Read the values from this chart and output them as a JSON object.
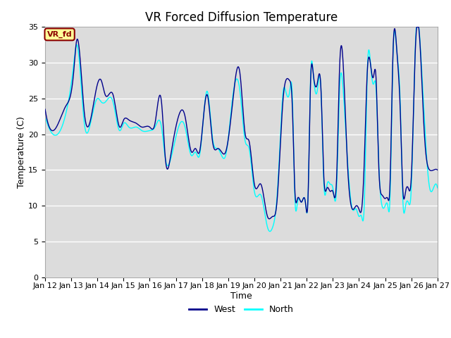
{
  "title": "VR Forced Diffusion Temperature",
  "xlabel": "Time",
  "ylabel": "Temperature (C)",
  "ylim": [
    0,
    35
  ],
  "yticks": [
    0,
    5,
    10,
    15,
    20,
    25,
    30,
    35
  ],
  "x_tick_labels": [
    "Jan 12",
    "Jan 13",
    "Jan 14",
    "Jan 15",
    "Jan 16",
    "Jan 17",
    "Jan 18",
    "Jan 19",
    "Jan 20",
    "Jan 21",
    "Jan 22",
    "Jan 23",
    "Jan 24",
    "Jan 25",
    "Jan 26",
    "Jan 27"
  ],
  "west_color": "#00008B",
  "north_color": "#00FFFF",
  "legend_label_west": "West",
  "legend_label_north": "North",
  "annotation_text": "VR_fd",
  "annotation_bg": "#FFFF99",
  "annotation_border": "#8B0000",
  "plot_bg": "#DCDCDC",
  "title_fontsize": 12,
  "axis_fontsize": 9,
  "tick_fontsize": 8,
  "west_points": [
    [
      0.0,
      23.5
    ],
    [
      0.3,
      20.5
    ],
    [
      0.8,
      24.0
    ],
    [
      1.1,
      29.0
    ],
    [
      1.2,
      33.0
    ],
    [
      1.5,
      23.0
    ],
    [
      1.7,
      21.5
    ],
    [
      2.0,
      27.0
    ],
    [
      2.15,
      27.5
    ],
    [
      2.3,
      25.5
    ],
    [
      2.6,
      25.5
    ],
    [
      2.85,
      21.0
    ],
    [
      3.0,
      22.0
    ],
    [
      3.2,
      22.0
    ],
    [
      3.5,
      21.5
    ],
    [
      3.7,
      21.0
    ],
    [
      4.0,
      21.0
    ],
    [
      4.2,
      21.5
    ],
    [
      4.45,
      24.5
    ],
    [
      4.6,
      16.5
    ],
    [
      4.8,
      17.0
    ],
    [
      5.1,
      22.5
    ],
    [
      5.35,
      22.5
    ],
    [
      5.6,
      17.5
    ],
    [
      5.75,
      18.0
    ],
    [
      5.9,
      17.5
    ],
    [
      6.2,
      25.5
    ],
    [
      6.4,
      19.0
    ],
    [
      6.6,
      18.0
    ],
    [
      6.75,
      17.5
    ],
    [
      6.9,
      17.5
    ],
    [
      7.2,
      25.5
    ],
    [
      7.45,
      28.5
    ],
    [
      7.65,
      20.0
    ],
    [
      7.8,
      19.0
    ],
    [
      8.0,
      13.0
    ],
    [
      8.25,
      13.0
    ],
    [
      8.5,
      8.5
    ],
    [
      8.7,
      8.5
    ],
    [
      8.85,
      10.0
    ],
    [
      9.0,
      19.0
    ],
    [
      9.1,
      25.0
    ],
    [
      9.2,
      27.5
    ],
    [
      9.35,
      27.5
    ],
    [
      9.45,
      24.0
    ],
    [
      9.55,
      12.0
    ],
    [
      9.65,
      11.0
    ],
    [
      9.8,
      10.5
    ],
    [
      9.95,
      10.5
    ],
    [
      10.05,
      11.0
    ],
    [
      10.15,
      27.5
    ],
    [
      10.25,
      28.5
    ],
    [
      10.4,
      27.0
    ],
    [
      10.55,
      26.0
    ],
    [
      10.65,
      14.5
    ],
    [
      10.78,
      12.5
    ],
    [
      10.9,
      12.0
    ],
    [
      11.0,
      12.0
    ],
    [
      11.15,
      14.5
    ],
    [
      11.25,
      28.5
    ],
    [
      11.4,
      29.5
    ],
    [
      11.55,
      16.5
    ],
    [
      11.75,
      9.5
    ],
    [
      11.9,
      10.0
    ],
    [
      12.0,
      9.5
    ],
    [
      12.1,
      9.5
    ],
    [
      12.2,
      16.0
    ],
    [
      12.32,
      29.0
    ],
    [
      12.45,
      29.5
    ],
    [
      12.55,
      28.0
    ],
    [
      12.65,
      28.0
    ],
    [
      12.75,
      16.0
    ],
    [
      12.88,
      11.5
    ],
    [
      13.0,
      11.0
    ],
    [
      13.1,
      11.0
    ],
    [
      13.18,
      12.5
    ],
    [
      13.3,
      31.5
    ],
    [
      13.45,
      31.5
    ],
    [
      13.58,
      23.0
    ],
    [
      13.68,
      12.0
    ],
    [
      13.78,
      12.0
    ],
    [
      13.88,
      12.5
    ],
    [
      14.0,
      14.0
    ],
    [
      14.15,
      31.5
    ],
    [
      14.35,
      31.5
    ],
    [
      14.5,
      20.0
    ],
    [
      14.7,
      15.0
    ],
    [
      14.85,
      15.0
    ],
    [
      15.0,
      15.0
    ]
  ],
  "north_points": [
    [
      0.0,
      22.5
    ],
    [
      0.3,
      20.0
    ],
    [
      0.8,
      23.0
    ],
    [
      1.1,
      30.0
    ],
    [
      1.2,
      32.5
    ],
    [
      1.5,
      21.5
    ],
    [
      1.7,
      21.0
    ],
    [
      2.0,
      25.0
    ],
    [
      2.15,
      24.5
    ],
    [
      2.3,
      24.5
    ],
    [
      2.6,
      24.5
    ],
    [
      2.85,
      20.5
    ],
    [
      3.0,
      21.5
    ],
    [
      3.2,
      21.0
    ],
    [
      3.5,
      21.0
    ],
    [
      3.7,
      20.5
    ],
    [
      4.0,
      20.5
    ],
    [
      4.2,
      21.0
    ],
    [
      4.45,
      21.0
    ],
    [
      4.6,
      16.5
    ],
    [
      4.8,
      16.5
    ],
    [
      5.1,
      21.0
    ],
    [
      5.35,
      21.0
    ],
    [
      5.6,
      17.0
    ],
    [
      5.75,
      17.5
    ],
    [
      5.9,
      17.0
    ],
    [
      6.2,
      26.0
    ],
    [
      6.4,
      19.5
    ],
    [
      6.6,
      18.0
    ],
    [
      6.75,
      17.0
    ],
    [
      6.9,
      17.0
    ],
    [
      7.2,
      26.0
    ],
    [
      7.45,
      26.0
    ],
    [
      7.65,
      19.0
    ],
    [
      7.8,
      18.0
    ],
    [
      8.0,
      12.0
    ],
    [
      8.25,
      11.5
    ],
    [
      8.5,
      7.0
    ],
    [
      8.7,
      7.0
    ],
    [
      8.85,
      10.5
    ],
    [
      9.0,
      20.0
    ],
    [
      9.1,
      26.0
    ],
    [
      9.2,
      26.0
    ],
    [
      9.35,
      26.0
    ],
    [
      9.45,
      25.5
    ],
    [
      9.55,
      11.0
    ],
    [
      9.65,
      10.5
    ],
    [
      9.8,
      10.5
    ],
    [
      9.95,
      10.5
    ],
    [
      10.05,
      11.0
    ],
    [
      10.15,
      28.0
    ],
    [
      10.25,
      28.5
    ],
    [
      10.4,
      26.0
    ],
    [
      10.55,
      26.0
    ],
    [
      10.65,
      13.5
    ],
    [
      10.78,
      13.0
    ],
    [
      10.9,
      13.0
    ],
    [
      11.0,
      12.5
    ],
    [
      11.15,
      13.0
    ],
    [
      11.25,
      25.5
    ],
    [
      11.4,
      26.0
    ],
    [
      11.55,
      17.0
    ],
    [
      11.75,
      9.5
    ],
    [
      11.9,
      9.5
    ],
    [
      12.0,
      8.5
    ],
    [
      12.1,
      8.5
    ],
    [
      12.2,
      10.0
    ],
    [
      12.32,
      29.0
    ],
    [
      12.45,
      29.5
    ],
    [
      12.55,
      27.0
    ],
    [
      12.65,
      26.5
    ],
    [
      12.75,
      16.5
    ],
    [
      12.88,
      10.0
    ],
    [
      13.0,
      10.0
    ],
    [
      13.1,
      10.0
    ],
    [
      13.18,
      10.5
    ],
    [
      13.3,
      31.0
    ],
    [
      13.45,
      31.5
    ],
    [
      13.58,
      24.0
    ],
    [
      13.68,
      10.5
    ],
    [
      13.78,
      10.0
    ],
    [
      13.88,
      10.5
    ],
    [
      14.0,
      12.5
    ],
    [
      14.15,
      32.0
    ],
    [
      14.35,
      32.0
    ],
    [
      14.5,
      22.0
    ],
    [
      14.7,
      12.5
    ],
    [
      14.85,
      12.5
    ],
    [
      15.0,
      12.5
    ]
  ]
}
